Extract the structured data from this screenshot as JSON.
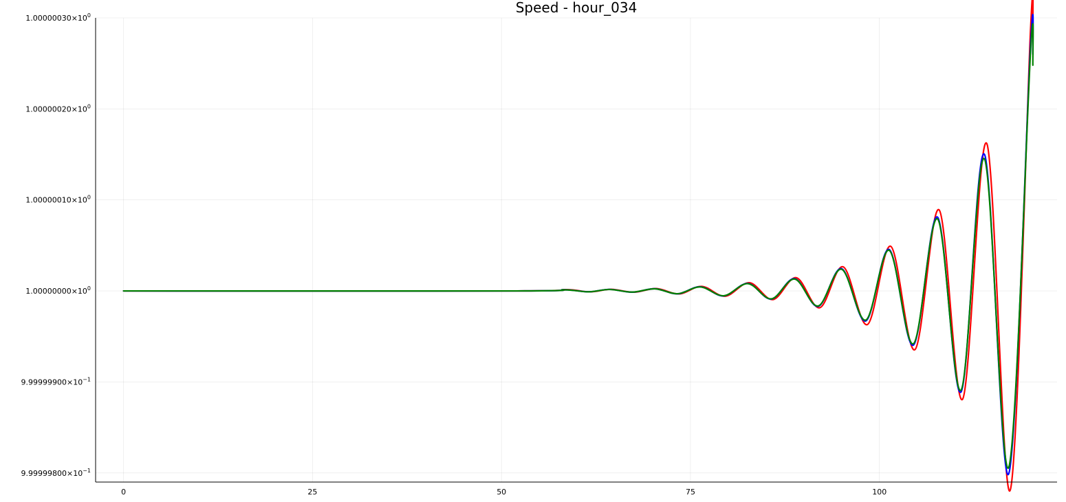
{
  "chart_data": {
    "type": "line",
    "title": "Speed - hour_034",
    "xlabel": "",
    "ylabel": "",
    "xlim": [
      -3.7,
      123.5
    ],
    "ylim": [
      0.99999979,
      1.0000003
    ],
    "x_ticks": [
      {
        "value": 0,
        "label": "0"
      },
      {
        "value": 25,
        "label": "25"
      },
      {
        "value": 50,
        "label": "50"
      },
      {
        "value": 75,
        "label": "75"
      },
      {
        "value": 100,
        "label": "100"
      }
    ],
    "y_ticks": [
      {
        "value": 0.9999998,
        "mantissa": "9.99999800",
        "exponent": "−1"
      },
      {
        "value": 0.9999999,
        "mantissa": "9.99999900",
        "exponent": "−1"
      },
      {
        "value": 1.0,
        "mantissa": "1.00000000",
        "exponent": "0"
      },
      {
        "value": 1.0000001,
        "mantissa": "1.00000010",
        "exponent": "0"
      },
      {
        "value": 1.0000002,
        "mantissa": "1.00000020",
        "exponent": "0"
      },
      {
        "value": 1.0000003,
        "mantissa": "1.00000030",
        "exponent": "0"
      }
    ],
    "grid": true,
    "legend": "none",
    "series": [
      {
        "color": "#ff0000",
        "values": [
          [
            0,
            1.0
          ],
          [
            52,
            1.0
          ],
          [
            58.5,
            1.0000000015
          ],
          [
            61.7,
            0.999999999
          ],
          [
            64.5,
            1.0000000018
          ],
          [
            67.5,
            0.9999999986
          ],
          [
            70.5,
            1.0000000026
          ],
          [
            73.5,
            0.9999999967
          ],
          [
            76.5,
            1.000000005
          ],
          [
            79.6,
            0.9999999942
          ],
          [
            82.8,
            1.000000009
          ],
          [
            85.9,
            0.9999999905
          ],
          [
            89.0,
            1.0000000145
          ],
          [
            92.1,
            0.9999999815
          ],
          [
            95.2,
            1.0000000265
          ],
          [
            98.4,
            0.999999963
          ],
          [
            101.5,
            1.000000049
          ],
          [
            104.7,
            0.9999999355
          ],
          [
            107.9,
            1.000000089
          ],
          [
            111.0,
            0.999999881
          ],
          [
            114.2,
            1.000000162
          ],
          [
            117.3,
            0.999999781
          ],
          [
            120.0,
            1.000000289
          ],
          [
            120.3,
            1.000000292
          ]
        ]
      },
      {
        "color": "#0000ff",
        "values": [
          [
            0,
            1.0
          ],
          [
            52,
            1.0
          ],
          [
            58.3,
            1.0000000013
          ],
          [
            61.5,
            0.999999999
          ],
          [
            64.3,
            1.0000000017
          ],
          [
            67.3,
            0.9999999986
          ],
          [
            70.3,
            1.0000000024
          ],
          [
            73.3,
            0.9999999968
          ],
          [
            76.3,
            1.0000000046
          ],
          [
            79.4,
            0.9999999945
          ],
          [
            82.6,
            1.0000000083
          ],
          [
            85.7,
            0.999999991
          ],
          [
            88.8,
            1.0000000135
          ],
          [
            91.9,
            0.999999983
          ],
          [
            95.0,
            1.0000000245
          ],
          [
            98.2,
            0.999999967
          ],
          [
            101.3,
            1.0000000455
          ],
          [
            104.5,
            0.9999999405
          ],
          [
            107.7,
            1.000000081
          ],
          [
            110.8,
            0.999999889
          ],
          [
            113.9,
            1.00000015
          ],
          [
            117.1,
            0.999999799
          ],
          [
            120.0,
            1.000000272
          ],
          [
            120.3,
            1.00000026
          ]
        ]
      },
      {
        "color": "#008000",
        "values": [
          [
            0,
            1.0
          ],
          [
            52,
            1.0
          ],
          [
            58.3,
            1.0000000012
          ],
          [
            61.5,
            0.999999999
          ],
          [
            64.3,
            1.0000000016
          ],
          [
            67.3,
            0.9999999987
          ],
          [
            70.3,
            1.0000000023
          ],
          [
            73.3,
            0.9999999969
          ],
          [
            76.3,
            1.0000000044
          ],
          [
            79.4,
            0.9999999947
          ],
          [
            82.6,
            1.000000008
          ],
          [
            85.7,
            0.9999999913
          ],
          [
            88.8,
            1.000000013
          ],
          [
            91.9,
            0.9999999835
          ],
          [
            95.0,
            1.0000000238
          ],
          [
            98.2,
            0.999999968
          ],
          [
            101.3,
            1.0000000445
          ],
          [
            104.5,
            0.999999942
          ],
          [
            107.7,
            1.000000079
          ],
          [
            110.8,
            0.999999891
          ],
          [
            113.9,
            1.000000145
          ],
          [
            117.1,
            0.999999806
          ],
          [
            120.0,
            1.000000264
          ],
          [
            120.3,
            1.000000248
          ]
        ]
      }
    ]
  }
}
